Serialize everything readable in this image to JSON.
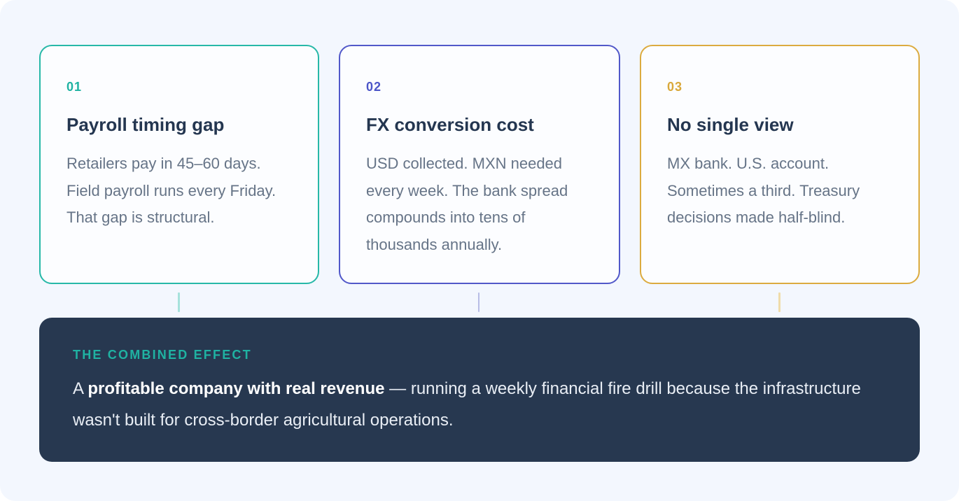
{
  "colors": {
    "teal": "#1fb2a2",
    "indigo": "#4b55c8",
    "gold": "#d9a83a",
    "navy": "#273850"
  },
  "cards": [
    {
      "number": "01",
      "title": "Payroll timing gap",
      "body": "Retailers pay in 45–60 days. Field payroll runs every Friday. That gap is structural."
    },
    {
      "number": "02",
      "title": "FX conversion cost",
      "body": "USD collected. MXN needed every week. The bank spread compounds into tens of thousands annually."
    },
    {
      "number": "03",
      "title": "No single view",
      "body": "MX bank. U.S. account. Sometimes a third. Treasury decisions made half-blind."
    }
  ],
  "effect": {
    "label": "THE COMBINED EFFECT",
    "lead": "A ",
    "emphasis": "profitable company with real revenue",
    "rest": " — running a weekly financial fire drill because the infrastructure wasn't built for cross-border agricultural operations."
  }
}
